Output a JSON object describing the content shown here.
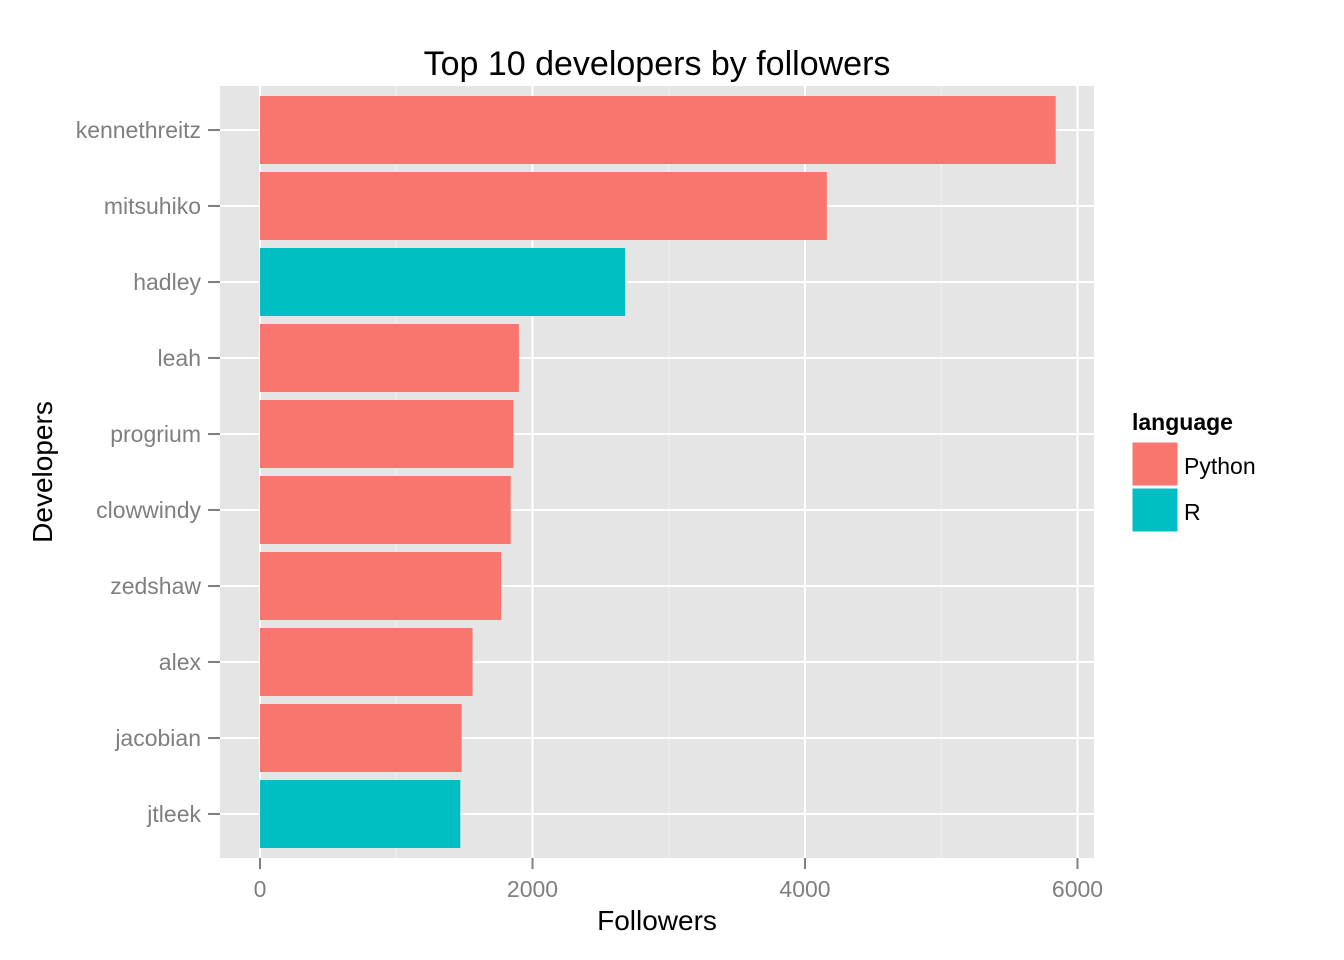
{
  "chart_data": {
    "type": "bar",
    "orientation": "horizontal",
    "title": "Top 10 developers by followers",
    "xlabel": "Followers",
    "ylabel": "Developers",
    "xlim": [
      -300,
      6150
    ],
    "x_ticks": [
      0,
      2000,
      4000,
      6000
    ],
    "x_tick_labels": [
      "0",
      "2000",
      "4000",
      "6000"
    ],
    "grid": true,
    "legend": {
      "title": "language",
      "position": "right",
      "entries": [
        {
          "label": "Python",
          "color": "#F8766D"
        },
        {
          "label": "R",
          "color": "#00BFC4"
        }
      ]
    },
    "categories": [
      "kennethreitz",
      "mitsuhiko",
      "hadley",
      "leah",
      "progrium",
      "clowwindy",
      "zedshaw",
      "alex",
      "jacobian",
      "jtleek"
    ],
    "values": [
      5840,
      4160,
      2680,
      1900,
      1860,
      1840,
      1770,
      1560,
      1480,
      1470
    ],
    "language": [
      "Python",
      "Python",
      "R",
      "Python",
      "Python",
      "Python",
      "Python",
      "Python",
      "Python",
      "R"
    ]
  },
  "colors": {
    "panel_background": "#E5E5E5",
    "grid_major": "#FFFFFF",
    "grid_minor": "#F2F2F2",
    "tick_text": "#7F7F7F",
    "python": "#F8766D",
    "r": "#00BFC4"
  }
}
